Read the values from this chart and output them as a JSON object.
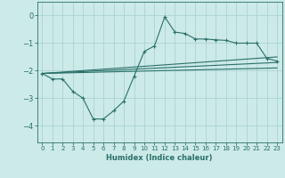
{
  "xlabel": "Humidex (Indice chaleur)",
  "ylabel": "",
  "background_color": "#cceae8",
  "grid_color": "#aad4d2",
  "line_color": "#2a7068",
  "xlim": [
    -0.5,
    23.5
  ],
  "ylim": [
    -4.6,
    0.5
  ],
  "yticks": [
    0,
    -1,
    -2,
    -3,
    -4
  ],
  "xticks": [
    0,
    1,
    2,
    3,
    4,
    5,
    6,
    7,
    8,
    9,
    10,
    11,
    12,
    13,
    14,
    15,
    16,
    17,
    18,
    19,
    20,
    21,
    22,
    23
  ],
  "main_x": [
    0,
    1,
    2,
    3,
    4,
    5,
    6,
    7,
    8,
    9,
    10,
    11,
    12,
    13,
    14,
    15,
    16,
    17,
    18,
    19,
    20,
    21,
    22,
    23
  ],
  "main_y": [
    -2.1,
    -2.3,
    -2.3,
    -2.75,
    -3.0,
    -3.75,
    -3.75,
    -3.45,
    -3.1,
    -2.2,
    -1.3,
    -1.1,
    -0.05,
    -0.6,
    -0.65,
    -0.85,
    -0.85,
    -0.88,
    -0.9,
    -1.0,
    -1.0,
    -1.0,
    -1.55,
    -1.65
  ],
  "line1_x": [
    0,
    23
  ],
  "line1_y": [
    -2.1,
    -1.5
  ],
  "line2_x": [
    0,
    23
  ],
  "line2_y": [
    -2.1,
    -1.7
  ],
  "line3_x": [
    0,
    23
  ],
  "line3_y": [
    -2.1,
    -1.9
  ]
}
